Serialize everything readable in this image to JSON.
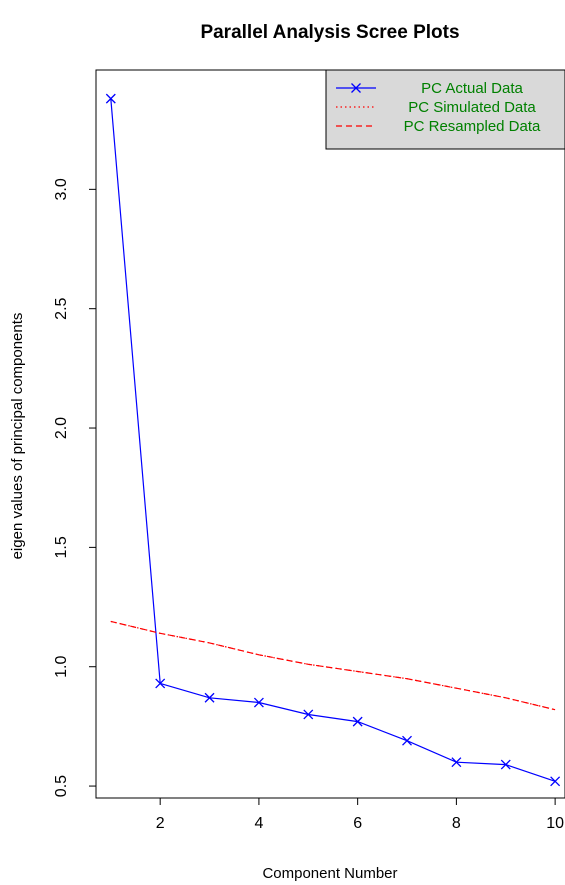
{
  "chart_data": {
    "type": "line",
    "title": "Parallel Analysis Scree Plots",
    "xlabel": "Component Number",
    "ylabel": "eigen values of principal components",
    "xlim": [
      0.7,
      10.2
    ],
    "ylim": [
      0.45,
      3.5
    ],
    "x_ticks": [
      2,
      4,
      6,
      8,
      10
    ],
    "y_ticks": [
      0.5,
      1.0,
      1.5,
      2.0,
      2.5,
      3.0
    ],
    "grid": false,
    "legend_position": "top-right",
    "x": [
      1,
      2,
      3,
      4,
      5,
      6,
      7,
      8,
      9,
      10
    ],
    "series": [
      {
        "name": "PC  Actual Data",
        "color": "#0000ff",
        "line_style": "solid",
        "marker": "x",
        "values": [
          3.38,
          0.93,
          0.87,
          0.85,
          0.8,
          0.77,
          0.69,
          0.6,
          0.59,
          0.52
        ]
      },
      {
        "name": "PC  Simulated Data",
        "color": "#ff0000",
        "line_style": "dotted",
        "marker": "",
        "values": [
          1.19,
          1.14,
          1.1,
          1.05,
          1.01,
          0.98,
          0.95,
          0.91,
          0.87,
          0.82
        ]
      },
      {
        "name": "PC  Resampled Data",
        "color": "#ff0000",
        "line_style": "dashed",
        "marker": "",
        "values": [
          1.19,
          1.14,
          1.1,
          1.05,
          1.01,
          0.98,
          0.95,
          0.91,
          0.87,
          0.82
        ]
      }
    ],
    "legend": {
      "background": "#d9d9d9",
      "text_color": "#008000"
    }
  }
}
